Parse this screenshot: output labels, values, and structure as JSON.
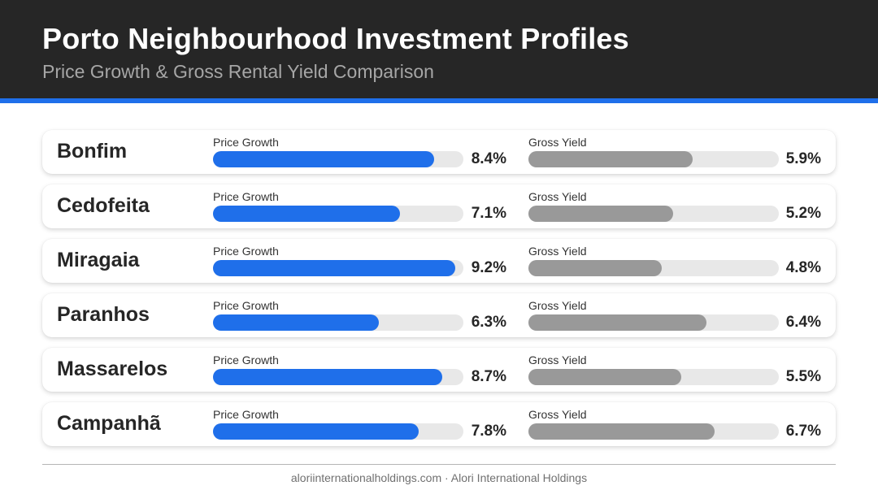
{
  "header": {
    "title": "Porto Neighbourhood Investment Profiles",
    "subtitle": "Price Growth & Gross Rental Yield Comparison"
  },
  "colors": {
    "price_growth_bar": "#1f6fea",
    "gross_yield_bar": "#999999",
    "track": "#e8e8e8",
    "header_bg": "#262626",
    "accent": "#1f6fea"
  },
  "chart_data": {
    "type": "bar",
    "orientation": "horizontal",
    "categories": [
      "Bonfim",
      "Cedofeita",
      "Miragaia",
      "Paranhos",
      "Massarelos",
      "Campanhã"
    ],
    "series": [
      {
        "name": "Price Growth",
        "values": [
          8.4,
          7.1,
          9.2,
          6.3,
          8.7,
          7.8
        ],
        "labels": [
          "8.4%",
          "7.1%",
          "9.2%",
          "6.3%",
          "8.7%",
          "7.8%"
        ],
        "max": 9.5
      },
      {
        "name": "Gross Yield",
        "values": [
          5.9,
          5.2,
          4.8,
          6.4,
          5.5,
          6.7
        ],
        "labels": [
          "5.9%",
          "5.2%",
          "4.8%",
          "6.4%",
          "5.5%",
          "6.7%"
        ],
        "max": 9.0
      }
    ],
    "title": "Porto Neighbourhood Investment Profiles",
    "subtitle": "Price Growth & Gross Rental Yield Comparison"
  },
  "footer": {
    "text": "aloriinternationalholdings.com · Alori International Holdings"
  }
}
